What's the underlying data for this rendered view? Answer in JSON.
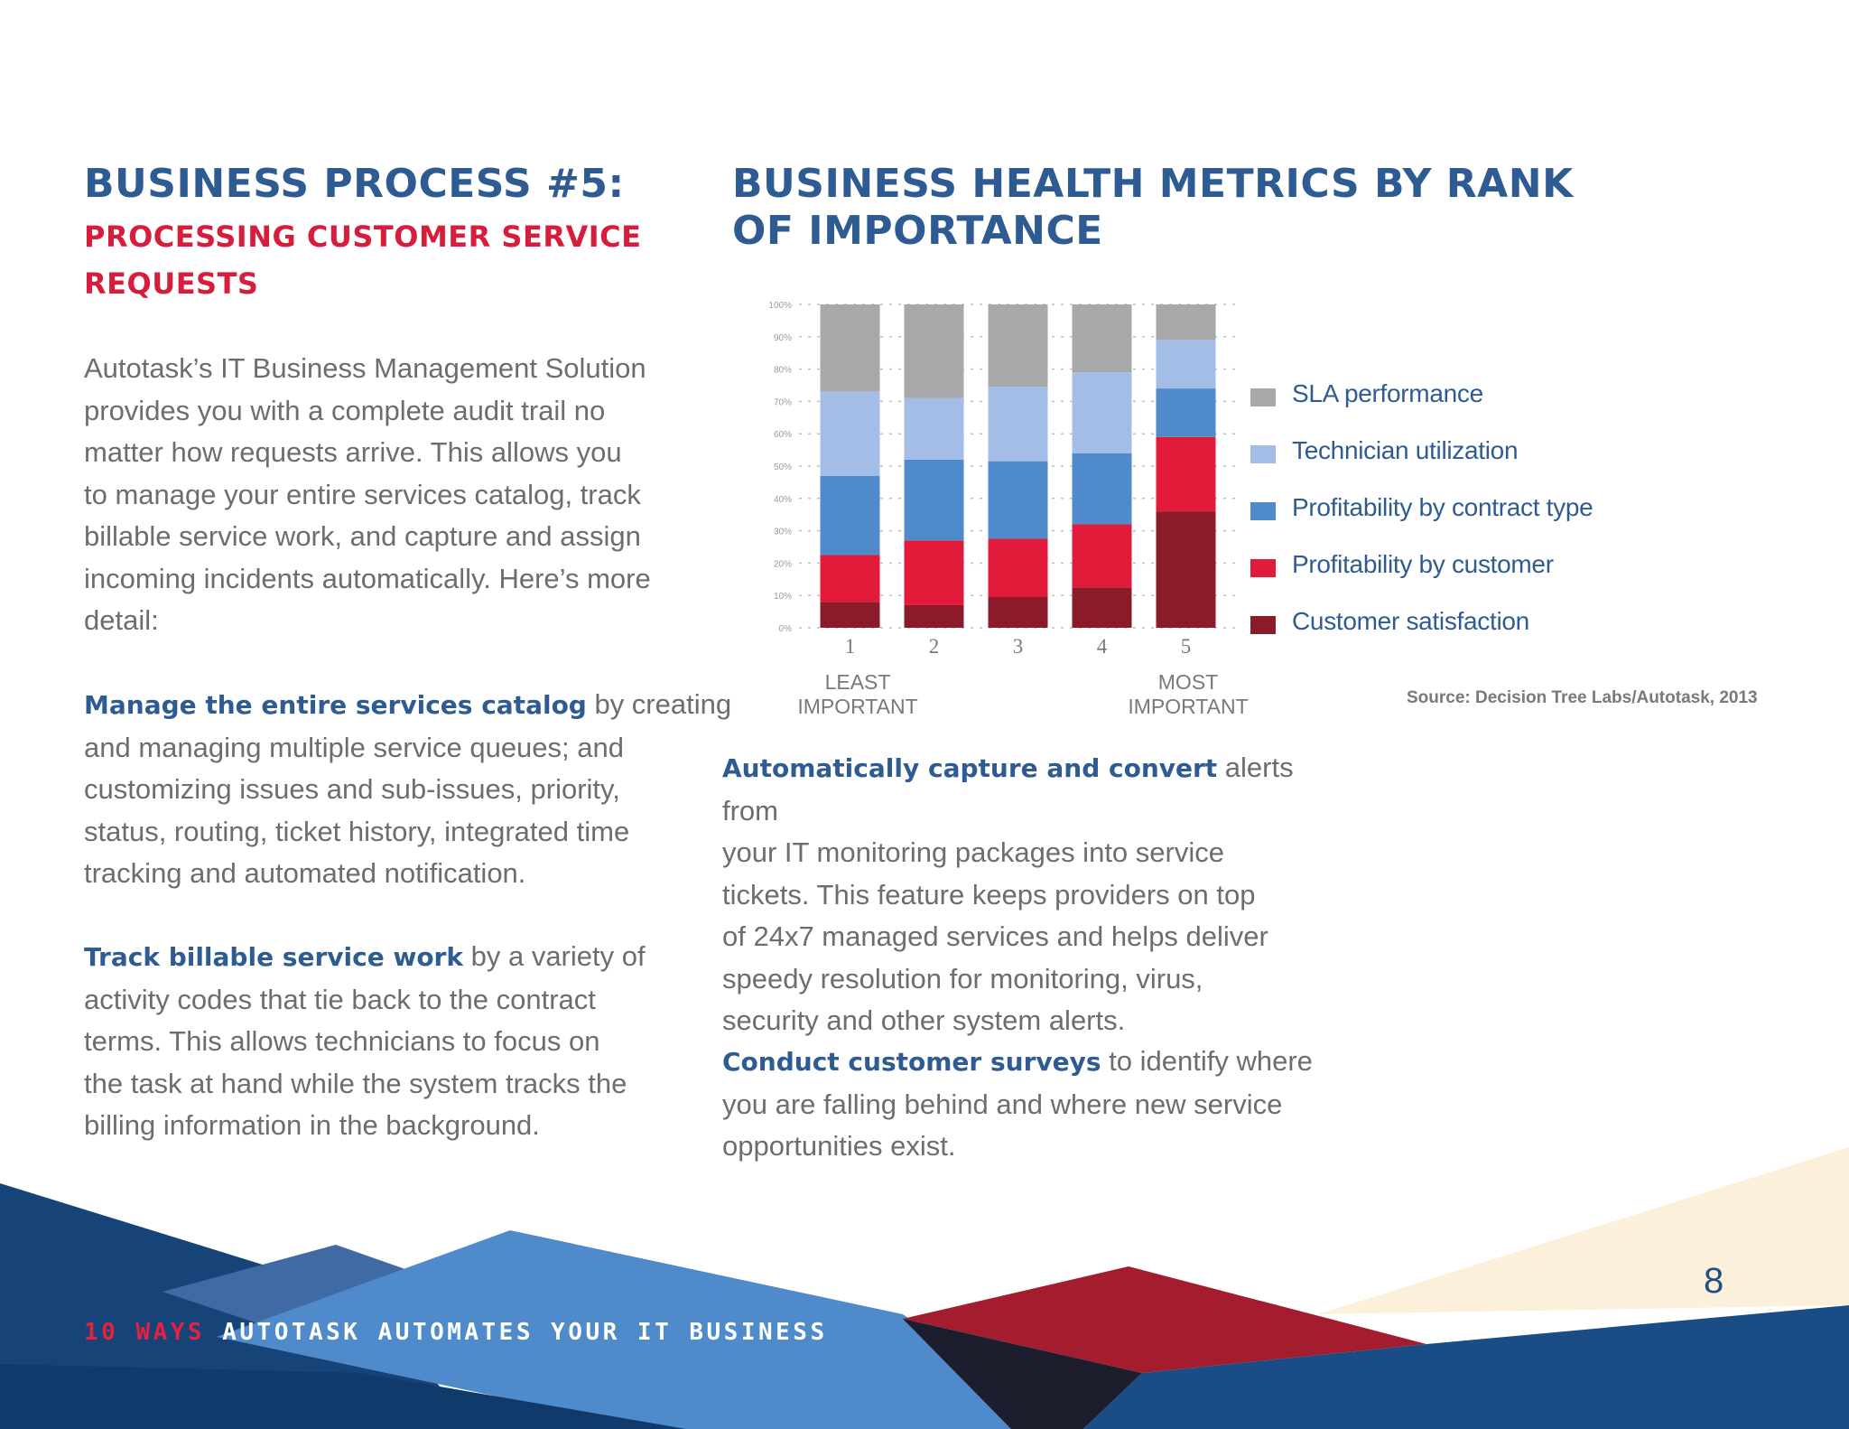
{
  "left": {
    "title": "BUSINESS PROCESS #5:",
    "subtitle_line1": "PROCESSING CUSTOMER SERVICE",
    "subtitle_line2": "REQUESTS",
    "intro": [
      "Autotask’s IT Business Management Solution",
      "provides you with a complete audit trail no",
      "matter how requests arrive. This allows you",
      "to manage your entire services catalog, track",
      "billable service work, and capture and assign",
      "incoming incidents automatically. Here’s more",
      "detail:"
    ],
    "catalog_bold": "Manage the entire services catalog",
    "catalog_rest_first": " by creating",
    "catalog_lines": [
      "and managing multiple service queues; and",
      "customizing issues and sub-issues, priority,",
      "status, routing, ticket history, integrated time",
      "tracking and automated notification."
    ],
    "billable_bold": "Track billable service work",
    "billable_rest_first": " by a variety of",
    "billable_lines": [
      "activity codes that tie back to the contract",
      "terms. This allows technicians to focus on",
      "the task at hand while the system tracks the",
      "billing information in the background."
    ]
  },
  "right": {
    "title_line1": "BUSINESS HEALTH METRICS BY RANK",
    "title_line2": "OF IMPORTANCE",
    "alerts_bold": "Automatically capture and convert",
    "alerts_rest_first": " alerts from",
    "alerts_lines": [
      "your IT monitoring packages into service",
      "tickets. This feature keeps providers on top",
      "of 24x7 managed services and helps deliver",
      "speedy resolution for monitoring, virus,",
      "security and other system alerts."
    ],
    "surveys_bold": "Conduct customer surveys",
    "surveys_rest_first": " to identify where",
    "surveys_lines": [
      "you are falling behind and where new service",
      "opportunities exist."
    ]
  },
  "chart_data": {
    "type": "bar",
    "stacked": true,
    "categories": [
      "1",
      "2",
      "3",
      "4",
      "5"
    ],
    "y_ticks": [
      "0%",
      "10%",
      "20%",
      "30%",
      "40%",
      "50%",
      "60%",
      "70%",
      "80%",
      "90%",
      "100%"
    ],
    "ylim": [
      0,
      100
    ],
    "grid": true,
    "legend_position": "right",
    "series": [
      {
        "name": "Customer satisfaction",
        "color": "#8b1b2a",
        "values": [
          8,
          7,
          9.5,
          12.5,
          36
        ]
      },
      {
        "name": "Profitability by customer",
        "color": "#e31b3a",
        "values": [
          14.5,
          20,
          18,
          19.5,
          23
        ]
      },
      {
        "name": "Profitability by contract type",
        "color": "#4f8acb",
        "values": [
          24.5,
          25,
          24,
          22,
          15
        ]
      },
      {
        "name": "Technician utilization",
        "color": "#a4bde6",
        "values": [
          26,
          19,
          23,
          25,
          15
        ]
      },
      {
        "name": "SLA performance",
        "color": "#a7a8aa",
        "values": [
          27,
          29,
          25.5,
          21,
          11
        ]
      }
    ],
    "legend_order": [
      "SLA performance",
      "Technician utilization",
      "Profitability by contract type",
      "Profitability by customer",
      "Customer satisfaction"
    ],
    "x_end_labels": {
      "least": [
        "LEAST",
        "IMPORTANT"
      ],
      "most": [
        "MOST",
        "IMPORTANT"
      ]
    },
    "source": "Source: Decision Tree Labs/Autotask, 2013"
  },
  "footer": {
    "accent": "10 WAYS",
    "title": " AUTOTASK AUTOMATES YOUR IT BUSINESS",
    "page_number": "8"
  },
  "colors": {
    "navy": "#2f5b93",
    "red": "#d71d3c",
    "body_text": "#6b6d70"
  }
}
